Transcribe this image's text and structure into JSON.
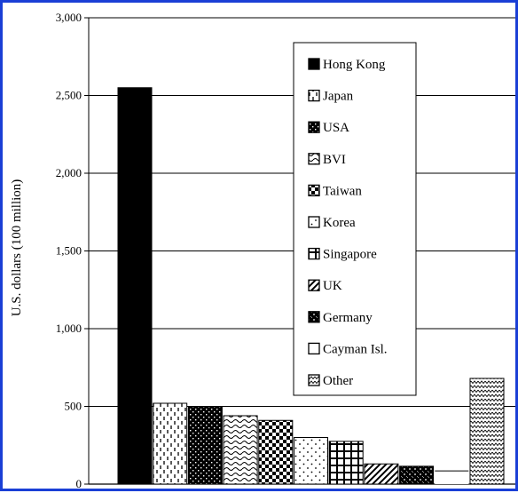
{
  "chart_data": {
    "type": "bar",
    "title": "",
    "xlabel": "",
    "ylabel": "U.S. dollars (100 million)",
    "ylim": [
      0,
      3000
    ],
    "yticks": [
      0,
      500,
      1000,
      1500,
      2000,
      2500,
      3000
    ],
    "ytick_labels": [
      "0",
      "500",
      "1,000",
      "1,500",
      "2,000",
      "2,500",
      "3,000"
    ],
    "grid": true,
    "legend_position": "top-right",
    "categories": [
      "Hong Kong",
      "Japan",
      "USA",
      "BVI",
      "Taiwan",
      "Korea",
      "Singapore",
      "UK",
      "Germany",
      "Cayman Isl.",
      "Other"
    ],
    "values": [
      2550,
      520,
      500,
      440,
      410,
      300,
      275,
      130,
      115,
      85,
      680
    ],
    "patterns": [
      "solid",
      "vertical-dashes",
      "dots-dense",
      "waves",
      "checker",
      "dots-sparse",
      "grid",
      "diagonal",
      "diamond-dense",
      "blank",
      "zigzag"
    ]
  }
}
